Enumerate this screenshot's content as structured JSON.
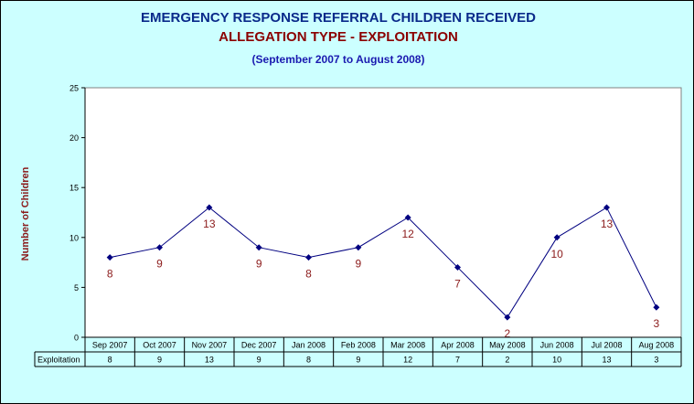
{
  "titles": {
    "line1": "EMERGENCY RESPONSE REFERRAL CHILDREN RECEIVED",
    "line2": "ALLEGATION TYPE - EXPLOITATION",
    "line3": "(September 2007 to August 2008)"
  },
  "colors": {
    "background": "#ccffff",
    "plot_area": "#ffffff",
    "line": "#000080",
    "data_label": "#8b1a1a"
  },
  "chart_data": {
    "type": "line",
    "title": "EMERGENCY RESPONSE REFERRAL CHILDREN RECEIVED",
    "subtitle": "ALLEGATION TYPE - EXPLOITATION",
    "period": "(September 2007 to August 2008)",
    "xlabel": "",
    "ylabel": "Number of Children",
    "ylim": [
      0,
      25
    ],
    "yticks": [
      0,
      5,
      10,
      15,
      20,
      25
    ],
    "grid": false,
    "categories": [
      "Sep 2007",
      "Oct 2007",
      "Nov 2007",
      "Dec 2007",
      "Jan 2008",
      "Feb 2008",
      "Mar 2008",
      "Apr 2008",
      "May 2008",
      "Jun 2008",
      "Jul 2008",
      "Aug 2008"
    ],
    "series": [
      {
        "name": "Exploitation",
        "values": [
          8,
          9,
          13,
          9,
          8,
          9,
          12,
          7,
          2,
          10,
          13,
          3
        ]
      }
    ],
    "data_table": true
  }
}
